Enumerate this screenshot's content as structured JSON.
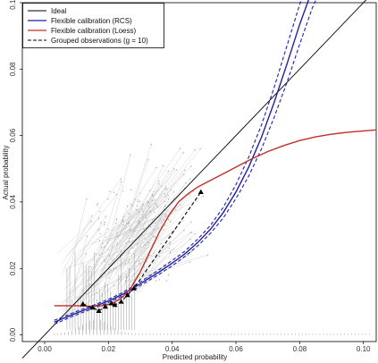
{
  "chart_data": {
    "type": "line",
    "xlabel": "Predicted probability",
    "ylabel": "Actual probability",
    "xlim": [
      -0.007,
      0.104
    ],
    "ylim": [
      -0.002,
      0.1
    ],
    "x_ticks": [
      0.0,
      0.02,
      0.04,
      0.06,
      0.08,
      0.1
    ],
    "x_tick_labels": [
      "0.00",
      "0.02",
      "0.04",
      "0.06",
      "0.08",
      "0.10"
    ],
    "y_ticks": [
      0.0,
      0.02,
      0.04,
      0.06,
      0.08,
      0.1
    ],
    "y_tick_labels": [
      "0.00",
      "0.02",
      "0.04",
      "0.06",
      "0.08",
      "0.10"
    ],
    "grid": false,
    "legend_position": "top-left",
    "legend": [
      {
        "label": "Ideal",
        "color": "#000000",
        "style": "solid"
      },
      {
        "label": "Flexible calibration (RCS)",
        "color": "#1f1fa8",
        "style": "solid"
      },
      {
        "label": "Flexible calibration (Loess)",
        "color": "#c0302a",
        "style": "solid"
      },
      {
        "label": "Grouped observations (g = 10)",
        "color": "#000000",
        "style": "dashed"
      }
    ],
    "series": [
      {
        "name": "Ideal",
        "color": "#000000",
        "x": [
          -0.007,
          0.104
        ],
        "y": [
          -0.007,
          0.104
        ]
      },
      {
        "name": "Flexible calibration (RCS)",
        "color": "#1f1fa8",
        "x": [
          0.003,
          0.008,
          0.012,
          0.016,
          0.02,
          0.024,
          0.028,
          0.032,
          0.036,
          0.04,
          0.044,
          0.048,
          0.052,
          0.056,
          0.06,
          0.064,
          0.068,
          0.072,
          0.076,
          0.08,
          0.084,
          0.086
        ],
        "y": [
          0.0038,
          0.0058,
          0.0073,
          0.0087,
          0.0102,
          0.012,
          0.0142,
          0.0166,
          0.019,
          0.0216,
          0.0244,
          0.0278,
          0.0318,
          0.0368,
          0.043,
          0.0505,
          0.0595,
          0.07,
          0.0815,
          0.0935,
          0.104,
          0.109
        ]
      },
      {
        "name": "RCS confidence band (lower)",
        "color": "#1f1fa8",
        "style": "dashed",
        "x": [
          0.003,
          0.008,
          0.012,
          0.016,
          0.02,
          0.024,
          0.028,
          0.032,
          0.036,
          0.04,
          0.044,
          0.048,
          0.052,
          0.056,
          0.06,
          0.064,
          0.068,
          0.072,
          0.076,
          0.08,
          0.084,
          0.088
        ],
        "y": [
          0.0032,
          0.0053,
          0.0068,
          0.0082,
          0.0097,
          0.0115,
          0.0136,
          0.016,
          0.0183,
          0.0208,
          0.0236,
          0.0268,
          0.0306,
          0.0352,
          0.041,
          0.0478,
          0.056,
          0.0655,
          0.076,
          0.0875,
          0.0985,
          0.107
        ]
      },
      {
        "name": "RCS confidence band (upper)",
        "color": "#1f1fa8",
        "style": "dashed",
        "x": [
          0.003,
          0.008,
          0.012,
          0.016,
          0.02,
          0.024,
          0.028,
          0.032,
          0.036,
          0.04,
          0.044,
          0.048,
          0.052,
          0.056,
          0.06,
          0.064,
          0.068,
          0.072,
          0.076,
          0.08,
          0.083
        ],
        "y": [
          0.0044,
          0.0063,
          0.0078,
          0.0092,
          0.0107,
          0.0125,
          0.0148,
          0.0172,
          0.0197,
          0.0224,
          0.0252,
          0.0288,
          0.033,
          0.0384,
          0.0452,
          0.0535,
          0.0632,
          0.0745,
          0.087,
          0.0995,
          0.108
        ]
      },
      {
        "name": "Flexible calibration (Loess)",
        "color": "#c0302a",
        "x": [
          0.003,
          0.01,
          0.014,
          0.018,
          0.021,
          0.024,
          0.027,
          0.03,
          0.033,
          0.036,
          0.039,
          0.042,
          0.045,
          0.048,
          0.052,
          0.056,
          0.06,
          0.065,
          0.07,
          0.075,
          0.08,
          0.085,
          0.09,
          0.095,
          0.1,
          0.104
        ],
        "y": [
          0.0088,
          0.0088,
          0.0086,
          0.0088,
          0.0094,
          0.011,
          0.014,
          0.019,
          0.025,
          0.031,
          0.036,
          0.04,
          0.0425,
          0.0445,
          0.0465,
          0.0485,
          0.0505,
          0.053,
          0.0552,
          0.057,
          0.0585,
          0.0596,
          0.0604,
          0.061,
          0.0614,
          0.0617
        ]
      },
      {
        "name": "Grouped observations (g = 10)",
        "color": "#000000",
        "style": "dashed",
        "x": [
          0.012,
          0.015,
          0.017,
          0.019,
          0.021,
          0.022,
          0.024,
          0.026,
          0.028,
          0.049
        ],
        "y": [
          0.0093,
          0.0082,
          0.0072,
          0.0085,
          0.0095,
          0.009,
          0.01,
          0.012,
          0.014,
          0.043
        ]
      }
    ],
    "points": {
      "name": "Grouped observations (g = 10)",
      "marker": "triangle",
      "color": "#000000",
      "x": [
        0.012,
        0.015,
        0.017,
        0.019,
        0.021,
        0.022,
        0.024,
        0.026,
        0.028,
        0.049
      ],
      "y": [
        0.0093,
        0.0082,
        0.0072,
        0.0085,
        0.0095,
        0.009,
        0.01,
        0.012,
        0.014,
        0.043
      ]
    }
  }
}
